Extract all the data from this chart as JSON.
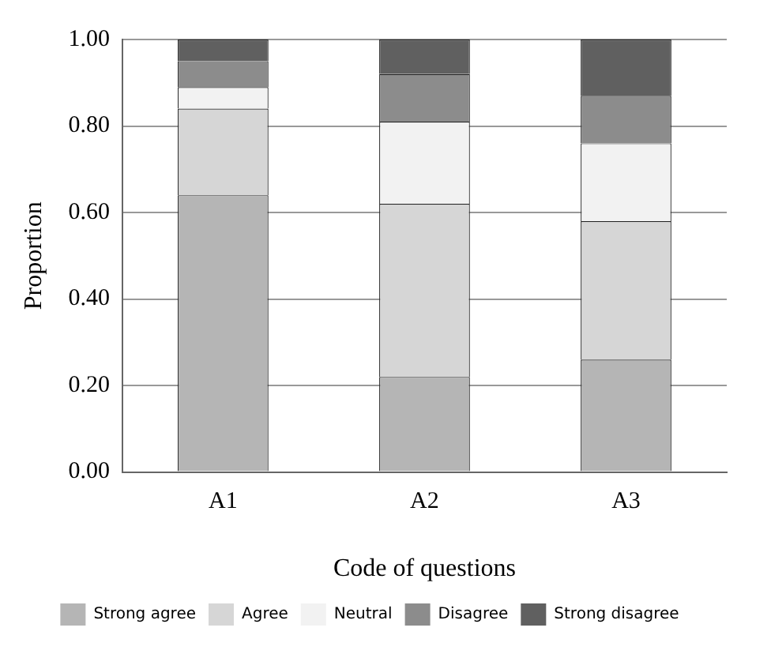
{
  "chart_data": {
    "type": "bar",
    "stacked": true,
    "xlabel": "Code of questions",
    "ylabel": "Proportion",
    "categories": [
      "A1",
      "A2",
      "A3"
    ],
    "series": [
      {
        "name": "Strong agree",
        "color": "#b5b5b5",
        "values": [
          0.64,
          0.22,
          0.26
        ]
      },
      {
        "name": "Agree",
        "color": "#d6d6d6",
        "values": [
          0.2,
          0.4,
          0.32
        ]
      },
      {
        "name": "Neutral",
        "color": "#f2f2f2",
        "values": [
          0.05,
          0.19,
          0.18
        ]
      },
      {
        "name": "Disagree",
        "color": "#8c8c8c",
        "values": [
          0.06,
          0.11,
          0.11
        ]
      },
      {
        "name": "Strong disagree",
        "color": "#606060",
        "values": [
          0.05,
          0.08,
          0.13
        ]
      }
    ],
    "ylim": [
      0,
      1
    ],
    "yticks": [
      {
        "value": 0,
        "label": "0.00"
      },
      {
        "value": 0.2,
        "label": "0.20"
      },
      {
        "value": 0.4,
        "label": "0.40"
      },
      {
        "value": 0.6,
        "label": "0.60"
      },
      {
        "value": 0.8,
        "label": "0.80"
      },
      {
        "value": 1,
        "label": "1.00"
      }
    ],
    "grid": "y",
    "legend": "bottom"
  }
}
